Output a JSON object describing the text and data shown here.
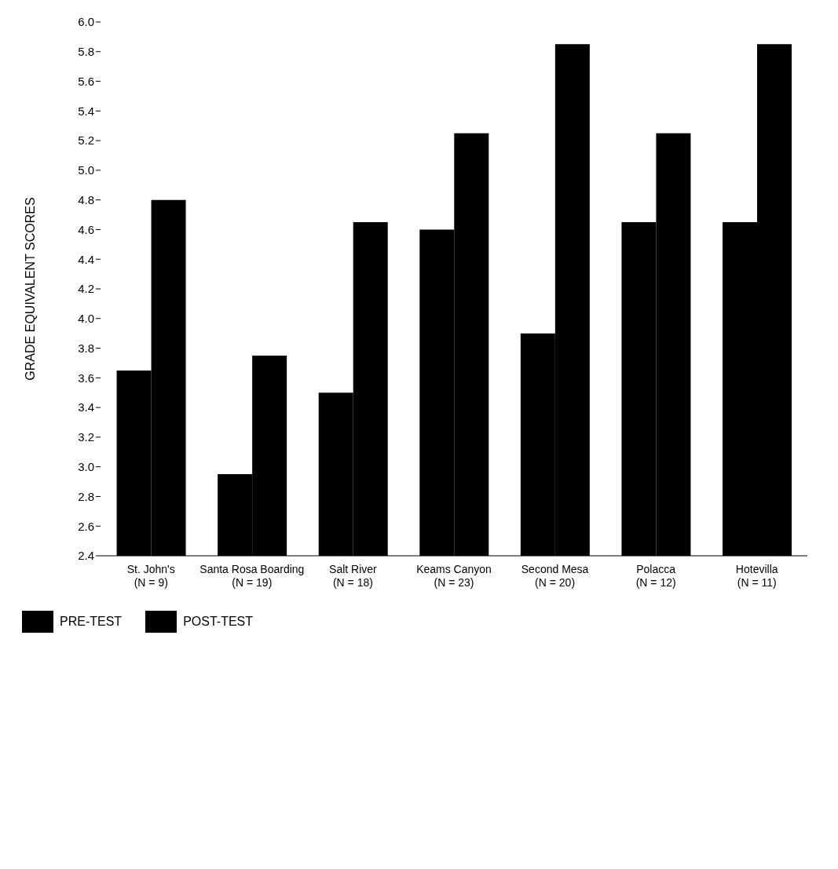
{
  "chart_data": {
    "type": "bar",
    "ylabel": "GRADE EQUIVALENT SCORES",
    "categories": [
      "St. John's (N = 9)",
      "Santa Rosa Boarding (N = 19)",
      "Salt River (N = 18)",
      "Keams Canyon (N = 23)",
      "Second Mesa (N = 20)",
      "Polacca (N = 12)",
      "Hotevilla (N = 11)"
    ],
    "series": [
      {
        "name": "PRE-TEST",
        "color": "#000000",
        "values": [
          3.65,
          2.95,
          3.5,
          4.6,
          3.9,
          4.65,
          4.65
        ]
      },
      {
        "name": "POST-TEST",
        "color": "#000000",
        "values": [
          4.8,
          3.75,
          4.65,
          5.25,
          5.85,
          5.25,
          5.85
        ]
      }
    ],
    "ylim": [
      2.4,
      6.0
    ],
    "yticks": [
      2.4,
      2.6,
      2.8,
      {
        "value": 3,
        "label": "3.0"
      },
      3.2,
      3.4,
      3.6,
      3.8,
      {
        "value": 4,
        "label": "4.0"
      },
      4.2,
      4.4,
      4.6,
      4.8,
      {
        "value": 5,
        "label": "5.0"
      },
      5.2,
      5.4,
      5.6,
      5.8,
      {
        "value": 6,
        "label": "6.0"
      }
    ],
    "grid": false,
    "legend": "bottom left"
  }
}
